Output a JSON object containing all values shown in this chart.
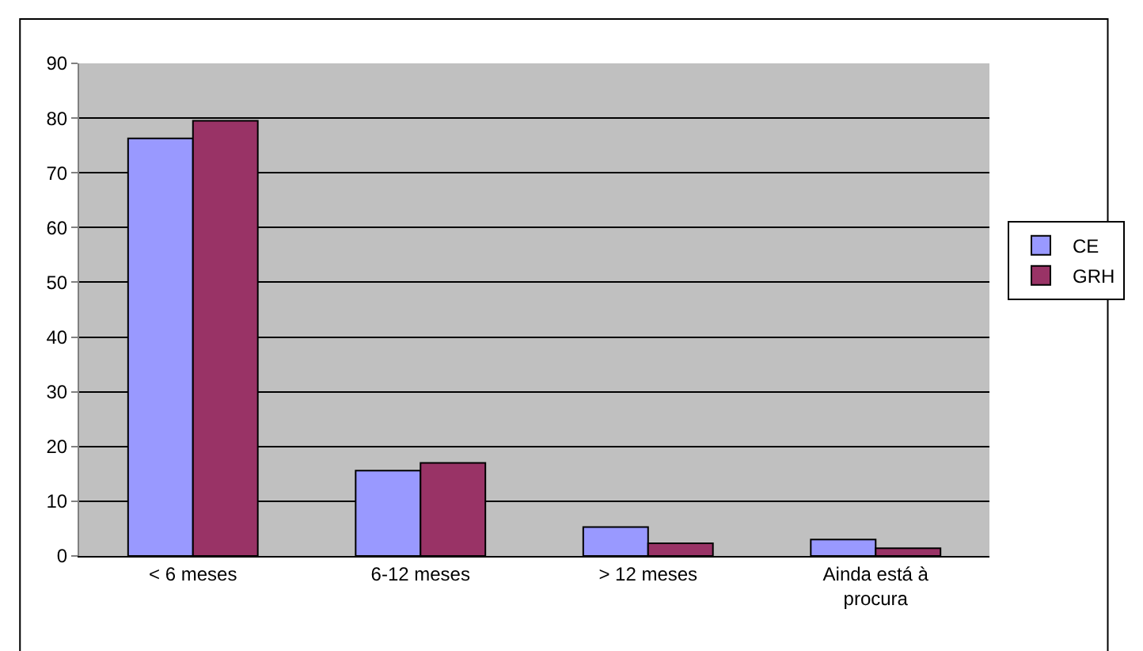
{
  "chart_data": {
    "type": "bar",
    "categories": [
      "< 6 meses",
      "6-12 meses",
      "> 12 meses",
      "Ainda está à procura"
    ],
    "series": [
      {
        "name": "CE",
        "color": "#9999ff",
        "values": [
          76.3,
          15.6,
          5.3,
          3.0
        ]
      },
      {
        "name": "GRH",
        "color": "#993366",
        "values": [
          79.5,
          17.0,
          2.3,
          1.4
        ]
      }
    ],
    "ylim": [
      0,
      90
    ],
    "yticks": [
      0,
      10,
      20,
      30,
      40,
      50,
      60,
      70,
      80,
      90
    ],
    "grid": "y",
    "legend": "right"
  }
}
